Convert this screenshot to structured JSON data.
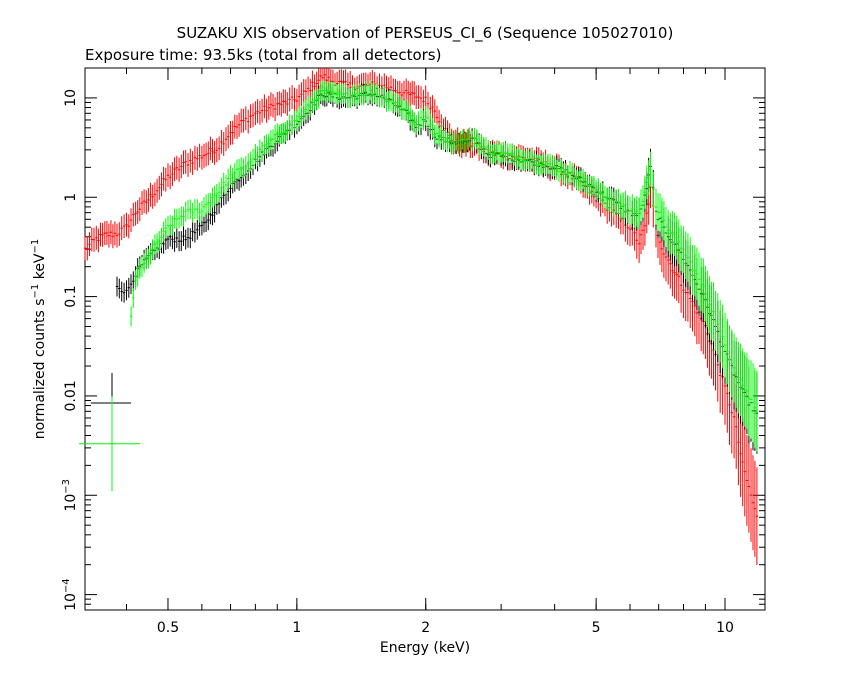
{
  "chart_data": {
    "type": "scatter",
    "title": "SUZAKU XIS observation of PERSEUS_CI_6 (Sequence 105027010)",
    "subtitle": "Exposure time: 93.5ks (total from all detectors)",
    "xlabel": "Energy (keV)",
    "ylabel": {
      "base": "normalized counts s",
      "sup1": "−1",
      "mid": " keV",
      "sup2": "−1"
    },
    "xscale": "log",
    "yscale": "log",
    "xlim": [
      0.32,
      12.4
    ],
    "ylim": [
      7e-05,
      20
    ],
    "x_ticks": [
      {
        "value": 0.5,
        "label": "0.5"
      },
      {
        "value": 1,
        "label": "1"
      },
      {
        "value": 2,
        "label": "2"
      },
      {
        "value": 5,
        "label": "5"
      },
      {
        "value": 10,
        "label": "10"
      }
    ],
    "y_ticks": [
      {
        "value": 10,
        "label": "10",
        "exp": ""
      },
      {
        "value": 1,
        "label": "1",
        "exp": ""
      },
      {
        "value": 0.1,
        "label": "0.1",
        "exp": ""
      },
      {
        "value": 0.01,
        "label": "0.01",
        "exp": ""
      },
      {
        "value": 0.001,
        "label": "10",
        "exp": "−3"
      },
      {
        "value": 0.0001,
        "label": "10",
        "exp": "−4"
      }
    ],
    "series": [
      {
        "color": "#ff0000",
        "points": [
          [
            0.32,
            0.3
          ],
          [
            0.34,
            0.38
          ],
          [
            0.36,
            0.42
          ],
          [
            0.38,
            0.43
          ],
          [
            0.4,
            0.5
          ],
          [
            0.42,
            0.7
          ],
          [
            0.45,
            0.95
          ],
          [
            0.5,
            1.6
          ],
          [
            0.55,
            2.2
          ],
          [
            0.6,
            2.6
          ],
          [
            0.65,
            3.1
          ],
          [
            0.7,
            4.5
          ],
          [
            0.75,
            5.8
          ],
          [
            0.8,
            7.0
          ],
          [
            0.85,
            7.8
          ],
          [
            0.9,
            8.5
          ],
          [
            0.95,
            9.0
          ],
          [
            1.0,
            9.8
          ],
          [
            1.05,
            11.5
          ],
          [
            1.1,
            14.0
          ],
          [
            1.15,
            16.5
          ],
          [
            1.2,
            15.0
          ],
          [
            1.3,
            13.5
          ],
          [
            1.4,
            13.0
          ],
          [
            1.5,
            13.5
          ],
          [
            1.6,
            13.0
          ],
          [
            1.7,
            12.0
          ],
          [
            1.8,
            11.0
          ],
          [
            1.9,
            10.5
          ],
          [
            2.0,
            9.5
          ],
          [
            2.1,
            7.5
          ],
          [
            2.2,
            5.0
          ],
          [
            2.3,
            3.8
          ],
          [
            2.4,
            3.5
          ],
          [
            2.6,
            3.4
          ],
          [
            2.8,
            2.8
          ],
          [
            3.0,
            2.7
          ],
          [
            3.5,
            2.4
          ],
          [
            4.0,
            2.0
          ],
          [
            4.5,
            1.5
          ],
          [
            5.0,
            1.0
          ],
          [
            5.5,
            0.7
          ],
          [
            6.0,
            0.5
          ],
          [
            6.3,
            0.35
          ],
          [
            6.5,
            0.5
          ],
          [
            6.7,
            1.2
          ],
          [
            6.9,
            0.5
          ],
          [
            7.2,
            0.28
          ],
          [
            7.8,
            0.15
          ],
          [
            8.5,
            0.08
          ],
          [
            9.0,
            0.05
          ],
          [
            9.5,
            0.025
          ],
          [
            10.0,
            0.012
          ],
          [
            10.5,
            0.006
          ],
          [
            11.0,
            0.002
          ],
          [
            11.5,
            0.001
          ],
          [
            12.0,
            0.0005
          ]
        ],
        "err": 0.12
      },
      {
        "color": "#000000",
        "points": [
          [
            0.38,
            0.13
          ],
          [
            0.4,
            0.11
          ],
          [
            0.42,
            0.17
          ],
          [
            0.45,
            0.25
          ],
          [
            0.5,
            0.38
          ],
          [
            0.55,
            0.38
          ],
          [
            0.6,
            0.5
          ],
          [
            0.65,
            0.8
          ],
          [
            0.7,
            1.3
          ],
          [
            0.75,
            1.7
          ],
          [
            0.8,
            2.3
          ],
          [
            0.85,
            3.0
          ],
          [
            0.9,
            3.8
          ],
          [
            0.95,
            4.7
          ],
          [
            1.0,
            5.6
          ],
          [
            1.05,
            7.0
          ],
          [
            1.1,
            9.0
          ],
          [
            1.15,
            11.0
          ],
          [
            1.2,
            10.5
          ],
          [
            1.3,
            10.0
          ],
          [
            1.4,
            10.5
          ],
          [
            1.5,
            11.0
          ],
          [
            1.6,
            10.0
          ],
          [
            1.7,
            8.5
          ],
          [
            1.8,
            7.0
          ],
          [
            1.9,
            5.2
          ],
          [
            2.0,
            6.0
          ],
          [
            2.1,
            4.2
          ],
          [
            2.2,
            3.8
          ],
          [
            2.3,
            3.6
          ],
          [
            2.5,
            3.5
          ],
          [
            2.6,
            3.8
          ],
          [
            2.8,
            2.7
          ],
          [
            3.0,
            2.6
          ],
          [
            3.5,
            2.3
          ],
          [
            4.0,
            2.0
          ],
          [
            4.5,
            1.6
          ],
          [
            5.0,
            1.2
          ],
          [
            5.5,
            0.9
          ],
          [
            6.0,
            0.7
          ],
          [
            6.3,
            0.65
          ],
          [
            6.5,
            1.0
          ],
          [
            6.7,
            2.0
          ],
          [
            6.9,
            0.7
          ],
          [
            7.2,
            0.48
          ],
          [
            7.8,
            0.3
          ],
          [
            8.5,
            0.15
          ],
          [
            9.0,
            0.09
          ],
          [
            9.5,
            0.05
          ],
          [
            10.0,
            0.028
          ],
          [
            10.5,
            0.017
          ],
          [
            11.0,
            0.011
          ],
          [
            11.5,
            0.008
          ],
          [
            12.0,
            0.006
          ]
        ],
        "err": 0.1
      },
      {
        "color": "#00ff00",
        "points": [
          [
            0.41,
            0.06
          ],
          [
            0.42,
            0.15
          ],
          [
            0.45,
            0.25
          ],
          [
            0.5,
            0.5
          ],
          [
            0.55,
            0.7
          ],
          [
            0.6,
            0.75
          ],
          [
            0.65,
            1.1
          ],
          [
            0.7,
            1.6
          ],
          [
            0.75,
            2.0
          ],
          [
            0.8,
            2.6
          ],
          [
            0.85,
            3.3
          ],
          [
            0.9,
            4.2
          ],
          [
            0.95,
            5.0
          ],
          [
            1.0,
            6.0
          ],
          [
            1.05,
            7.5
          ],
          [
            1.1,
            9.5
          ],
          [
            1.15,
            11.5
          ],
          [
            1.2,
            11.0
          ],
          [
            1.3,
            10.5
          ],
          [
            1.4,
            11.0
          ],
          [
            1.5,
            11.5
          ],
          [
            1.6,
            10.0
          ],
          [
            1.7,
            9.0
          ],
          [
            1.8,
            7.5
          ],
          [
            1.9,
            5.5
          ],
          [
            2.0,
            6.5
          ],
          [
            2.1,
            4.5
          ],
          [
            2.2,
            4.0
          ],
          [
            2.3,
            3.6
          ],
          [
            2.5,
            3.7
          ],
          [
            2.6,
            4.0
          ],
          [
            2.8,
            2.9
          ],
          [
            3.0,
            2.8
          ],
          [
            3.5,
            2.4
          ],
          [
            4.0,
            2.0
          ],
          [
            4.5,
            1.6
          ],
          [
            5.0,
            1.2
          ],
          [
            5.5,
            0.9
          ],
          [
            6.0,
            0.75
          ],
          [
            6.3,
            0.7
          ],
          [
            6.5,
            1.1
          ],
          [
            6.7,
            2.0
          ],
          [
            6.9,
            0.8
          ],
          [
            7.2,
            0.55
          ],
          [
            7.8,
            0.35
          ],
          [
            8.5,
            0.18
          ],
          [
            9.0,
            0.11
          ],
          [
            9.5,
            0.06
          ],
          [
            10.0,
            0.032
          ],
          [
            10.5,
            0.02
          ],
          [
            11.0,
            0.013
          ],
          [
            11.5,
            0.009
          ],
          [
            12.0,
            0.007
          ]
        ],
        "err": 0.1
      }
    ],
    "legend_markers": [
      {
        "color": "#000000",
        "y": 0.0085,
        "x": 0.37,
        "xhalf": 0.04,
        "yfac": 2.0
      },
      {
        "color": "#00ff00",
        "y": 0.0033,
        "x": 0.37,
        "xhalf": 0.06,
        "yfac": 3.0
      }
    ]
  }
}
